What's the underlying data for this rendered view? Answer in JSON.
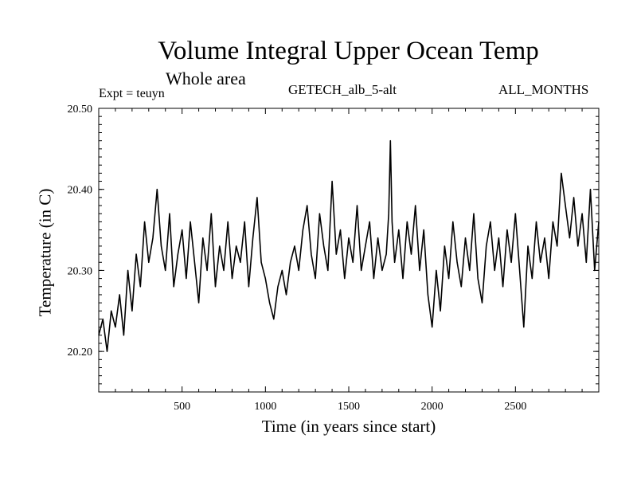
{
  "chart_data": {
    "type": "line",
    "title": "Volume Integral Upper Ocean Temp",
    "subtitle": "Whole area",
    "expt_label": "Expt = teuyn",
    "experiment": "GETECH_alb_5-alt",
    "months": "ALL_MONTHS",
    "xlabel": "Time (in years since start)",
    "ylabel": "Temperature (in C)",
    "xlim": [
      0,
      3000
    ],
    "ylim": [
      20.15,
      20.5
    ],
    "xticks": [
      500,
      1000,
      1500,
      2000,
      2500
    ],
    "xtick_labels": [
      "500",
      "1000",
      "1500",
      "2000",
      "2500"
    ],
    "yticks": [
      20.2,
      20.3,
      20.4,
      20.5
    ],
    "ytick_labels": [
      "20.20",
      "20.30",
      "20.40",
      "20.50"
    ],
    "grid": false,
    "series": [
      {
        "color": "#000000",
        "x": [
          0,
          25,
          50,
          75,
          100,
          125,
          150,
          175,
          200,
          225,
          250,
          275,
          300,
          325,
          350,
          375,
          400,
          425,
          450,
          475,
          500,
          525,
          550,
          575,
          600,
          625,
          650,
          675,
          700,
          725,
          750,
          775,
          800,
          825,
          850,
          875,
          900,
          925,
          950,
          975,
          1000,
          1025,
          1050,
          1075,
          1100,
          1125,
          1150,
          1175,
          1200,
          1225,
          1250,
          1275,
          1300,
          1325,
          1350,
          1375,
          1400,
          1425,
          1450,
          1475,
          1500,
          1525,
          1550,
          1575,
          1600,
          1625,
          1650,
          1675,
          1700,
          1725,
          1740,
          1750,
          1760,
          1775,
          1800,
          1825,
          1850,
          1875,
          1900,
          1925,
          1950,
          1975,
          2000,
          2025,
          2050,
          2075,
          2100,
          2125,
          2150,
          2175,
          2200,
          2225,
          2250,
          2275,
          2300,
          2325,
          2350,
          2375,
          2400,
          2425,
          2450,
          2475,
          2500,
          2525,
          2550,
          2575,
          2600,
          2625,
          2650,
          2675,
          2700,
          2725,
          2750,
          2775,
          2800,
          2825,
          2850,
          2875,
          2900,
          2925,
          2950,
          2975,
          3000
        ],
        "values": [
          20.22,
          20.24,
          20.2,
          20.25,
          20.23,
          20.27,
          20.22,
          20.3,
          20.25,
          20.32,
          20.28,
          20.36,
          20.31,
          20.34,
          20.4,
          20.33,
          20.3,
          20.37,
          20.28,
          20.32,
          20.35,
          20.29,
          20.36,
          20.31,
          20.26,
          20.34,
          20.3,
          20.37,
          20.28,
          20.33,
          20.3,
          20.36,
          20.29,
          20.33,
          20.31,
          20.36,
          20.28,
          20.34,
          20.39,
          20.31,
          20.29,
          20.26,
          20.24,
          20.28,
          20.3,
          20.27,
          20.31,
          20.33,
          20.3,
          20.35,
          20.38,
          20.32,
          20.29,
          20.37,
          20.33,
          20.3,
          20.41,
          20.32,
          20.35,
          20.29,
          20.34,
          20.31,
          20.38,
          20.3,
          20.33,
          20.36,
          20.29,
          20.34,
          20.3,
          20.32,
          20.37,
          20.46,
          20.36,
          20.31,
          20.35,
          20.29,
          20.36,
          20.32,
          20.38,
          20.3,
          20.35,
          20.27,
          20.23,
          20.3,
          20.25,
          20.33,
          20.29,
          20.36,
          20.31,
          20.28,
          20.34,
          20.3,
          20.37,
          20.29,
          20.26,
          20.33,
          20.36,
          20.3,
          20.34,
          20.28,
          20.35,
          20.31,
          20.37,
          20.3,
          20.23,
          20.33,
          20.29,
          20.36,
          20.31,
          20.34,
          20.29,
          20.36,
          20.33,
          20.42,
          20.38,
          20.34,
          20.39,
          20.33,
          20.37,
          20.31,
          20.4,
          20.3,
          20.36
        ]
      }
    ]
  }
}
